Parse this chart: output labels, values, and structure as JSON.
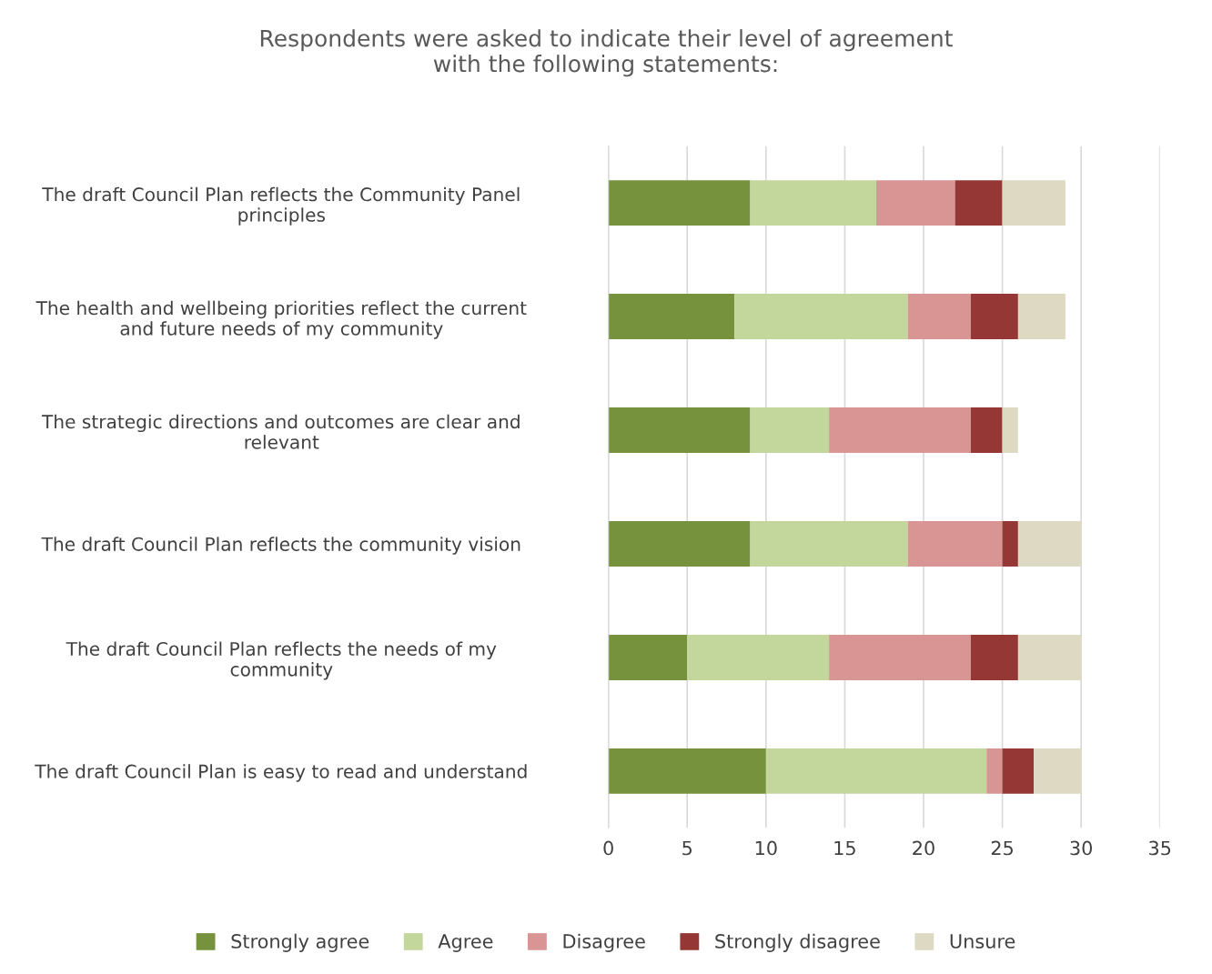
{
  "chart_data": {
    "type": "bar",
    "orientation": "horizontal",
    "stacked": true,
    "title": "Respondents were asked to indicate their level of agreement\nwith the following statements:",
    "categories": [
      "The draft Council Plan reflects the Community Panel\nprinciples",
      "The health and wellbeing priorities reflect the current\nand future needs of my community",
      "The strategic directions and outcomes are clear and\nrelevant",
      "The draft Council Plan reflects the community vision",
      "The draft Council Plan reflects the needs of my\ncommunity",
      "The draft Council Plan is easy to read and understand"
    ],
    "series": [
      {
        "name": "Strongly agree",
        "color": "#76923c",
        "values": [
          9,
          8,
          9,
          9,
          5,
          10
        ]
      },
      {
        "name": "Agree",
        "color": "#c3d69b",
        "values": [
          8,
          11,
          5,
          10,
          9,
          14
        ]
      },
      {
        "name": "Disagree",
        "color": "#d99594",
        "values": [
          5,
          4,
          9,
          6,
          9,
          1
        ]
      },
      {
        "name": "Strongly disagree",
        "color": "#953735",
        "values": [
          3,
          3,
          2,
          1,
          3,
          2
        ]
      },
      {
        "name": "Unsure",
        "color": "#ddd9c3",
        "values": [
          4,
          3,
          1,
          4,
          4,
          3
        ]
      }
    ],
    "xlim": [
      0,
      35
    ],
    "xticks": [
      0,
      5,
      10,
      15,
      20,
      25,
      30,
      35
    ],
    "grid": "x",
    "legend": "bottom"
  }
}
